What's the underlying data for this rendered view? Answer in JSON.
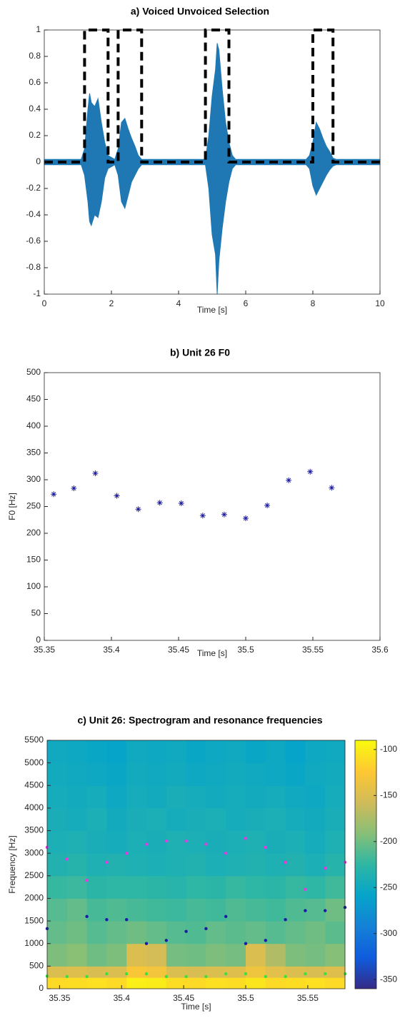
{
  "chart_data": [
    {
      "type": "line",
      "title": "a) Voiced Unvoiced Selection",
      "xlabel": "Time [s]",
      "xlim": [
        0,
        10
      ],
      "xticks": [
        0,
        2,
        4,
        6,
        8,
        10
      ],
      "ylim": [
        -1,
        1
      ],
      "yticks": [
        -1,
        -0.8,
        -0.6,
        -0.4,
        -0.2,
        0,
        0.2,
        0.4,
        0.6,
        0.8,
        1
      ],
      "series": [
        {
          "color": "#1f78b4",
          "fill": true,
          "x": [
            0,
            1.1,
            1.2,
            1.3,
            1.35,
            1.4,
            1.5,
            1.6,
            1.7,
            1.8,
            1.9,
            2.1,
            2.2,
            2.3,
            2.4,
            2.5,
            2.6,
            2.7,
            2.8,
            2.9,
            4.8,
            4.9,
            5.0,
            5.1,
            5.15,
            5.2,
            5.3,
            5.4,
            5.5,
            5.6,
            5.7,
            7.8,
            7.9,
            8.0,
            8.1,
            8.2,
            8.3,
            8.4,
            8.5,
            8.6,
            8.7,
            10
          ],
          "values": [
            0.02,
            0.02,
            0.1,
            0.4,
            0.52,
            0.45,
            0.42,
            0.48,
            0.3,
            0.15,
            0.05,
            0.02,
            0.1,
            0.3,
            0.33,
            0.25,
            0.18,
            0.12,
            0.05,
            0.02,
            0.02,
            0.2,
            0.5,
            0.7,
            0.9,
            0.85,
            0.55,
            0.3,
            0.15,
            0.05,
            0.02,
            0.02,
            0.05,
            0.15,
            0.3,
            0.25,
            0.18,
            0.12,
            0.08,
            0.03,
            0.02,
            0.02
          ]
        },
        {
          "color": "#1f78b4",
          "fill": true,
          "x": [
            0,
            1.1,
            1.2,
            1.3,
            1.35,
            1.4,
            1.5,
            1.6,
            1.7,
            1.8,
            1.9,
            2.1,
            2.2,
            2.3,
            2.4,
            2.5,
            2.6,
            2.7,
            2.8,
            2.9,
            4.8,
            4.9,
            5.0,
            5.1,
            5.15,
            5.2,
            5.3,
            5.4,
            5.5,
            5.6,
            5.7,
            7.8,
            7.9,
            8.0,
            8.1,
            8.2,
            8.3,
            8.4,
            8.5,
            8.6,
            8.7,
            10
          ],
          "values": [
            -0.02,
            -0.02,
            -0.1,
            -0.3,
            -0.45,
            -0.48,
            -0.4,
            -0.42,
            -0.3,
            -0.12,
            -0.05,
            -0.02,
            -0.1,
            -0.3,
            -0.35,
            -0.25,
            -0.15,
            -0.1,
            -0.05,
            -0.02,
            -0.02,
            -0.2,
            -0.55,
            -0.7,
            -1.0,
            -0.75,
            -0.5,
            -0.3,
            -0.15,
            -0.05,
            -0.02,
            -0.02,
            -0.05,
            -0.18,
            -0.25,
            -0.2,
            -0.15,
            -0.1,
            -0.06,
            -0.03,
            -0.02,
            -0.02
          ]
        },
        {
          "color": "#000000",
          "line_style": "dashed",
          "x": [
            0,
            1.2,
            1.2,
            1.9,
            1.9,
            2.2,
            2.2,
            2.9,
            2.9,
            4.8,
            4.8,
            5.5,
            5.5,
            8.0,
            8.0,
            8.6,
            8.6,
            10
          ],
          "values": [
            0,
            0,
            1,
            1,
            0,
            0,
            1,
            1,
            0,
            0,
            1,
            1,
            0,
            0,
            1,
            1,
            0,
            0
          ]
        }
      ]
    },
    {
      "type": "scatter",
      "title": "b) Unit 26 F0",
      "xlabel": "Time [s]",
      "ylabel": "F0 [Hz]",
      "xlim": [
        35.35,
        35.6
      ],
      "xticks": [
        35.35,
        35.4,
        35.45,
        35.5,
        35.55,
        35.6
      ],
      "ylim": [
        0,
        500
      ],
      "yticks": [
        0,
        50,
        100,
        150,
        200,
        250,
        300,
        350,
        400,
        450,
        500
      ],
      "series": [
        {
          "color": "#1a1a9c",
          "marker": "asterisk",
          "x": [
            35.357,
            35.372,
            35.388,
            35.404,
            35.42,
            35.436,
            35.452,
            35.468,
            35.484,
            35.5,
            35.516,
            35.532,
            35.548,
            35.564
          ],
          "values": [
            273,
            284,
            312,
            270,
            245,
            257,
            256,
            233,
            235,
            228,
            252,
            299,
            315,
            285
          ]
        }
      ]
    },
    {
      "type": "heatmap",
      "title": "c) Unit 26: Spectrogram and resonance frequencies",
      "xlabel": "Time [s]",
      "ylabel": "Frequency [Hz]",
      "xlim": [
        35.34,
        35.58
      ],
      "xticks": [
        35.35,
        35.4,
        35.45,
        35.5,
        35.55
      ],
      "ylim": [
        0,
        5500
      ],
      "yticks": [
        0,
        500,
        1000,
        1500,
        2000,
        2500,
        3000,
        3500,
        4000,
        4500,
        5000,
        5500
      ],
      "x_edges": [
        35.34,
        35.356,
        35.372,
        35.388,
        35.404,
        35.42,
        35.436,
        35.452,
        35.468,
        35.484,
        35.5,
        35.516,
        35.532,
        35.548,
        35.564,
        35.58
      ],
      "y_edges": [
        0,
        250,
        500,
        1000,
        1500,
        2000,
        2500,
        3000,
        3500,
        4000,
        4500,
        5000,
        5500
      ],
      "z": [
        [
          -112,
          -110,
          -108,
          -112,
          -98,
          -100,
          -110,
          -112,
          -108,
          -110,
          -104,
          -112,
          -110,
          -108,
          -112
        ],
        [
          -150,
          -148,
          -152,
          -150,
          -128,
          -132,
          -150,
          -152,
          -150,
          -148,
          -135,
          -145,
          -150,
          -152,
          -148
        ],
        [
          -195,
          -190,
          -200,
          -195,
          -150,
          -155,
          -198,
          -200,
          -195,
          -198,
          -150,
          -172,
          -195,
          -198,
          -192
        ],
        [
          -205,
          -200,
          -210,
          -205,
          -200,
          -205,
          -210,
          -212,
          -205,
          -208,
          -205,
          -210,
          -205,
          -200,
          -208
        ],
        [
          -210,
          -205,
          -215,
          -212,
          -215,
          -218,
          -220,
          -215,
          -218,
          -212,
          -215,
          -218,
          -212,
          -210,
          -200
        ],
        [
          -222,
          -220,
          -228,
          -225,
          -225,
          -228,
          -230,
          -225,
          -228,
          -222,
          -225,
          -228,
          -222,
          -225,
          -218
        ],
        [
          -235,
          -232,
          -238,
          -235,
          -238,
          -240,
          -238,
          -235,
          -240,
          -238,
          -235,
          -238,
          -235,
          -240,
          -232
        ],
        [
          -240,
          -238,
          -242,
          -245,
          -240,
          -242,
          -238,
          -240,
          -242,
          -240,
          -238,
          -242,
          -240,
          -245,
          -238
        ],
        [
          -242,
          -245,
          -240,
          -248,
          -242,
          -240,
          -245,
          -242,
          -240,
          -245,
          -242,
          -240,
          -245,
          -248,
          -242
        ],
        [
          -245,
          -248,
          -245,
          -252,
          -245,
          -248,
          -242,
          -245,
          -248,
          -245,
          -248,
          -245,
          -250,
          -252,
          -245
        ],
        [
          -248,
          -250,
          -252,
          -255,
          -248,
          -250,
          -248,
          -252,
          -250,
          -248,
          -250,
          -252,
          -255,
          -250,
          -248
        ],
        [
          -250,
          -252,
          -255,
          -258,
          -250,
          -252,
          -250,
          -255,
          -252,
          -250,
          -255,
          -252,
          -258,
          -252,
          -250
        ]
      ],
      "clim": [
        -360,
        -90
      ],
      "colorbar_ticks": [
        -350,
        -300,
        -250,
        -200,
        -150,
        -100
      ],
      "colormap": [
        "#352a87",
        "#0f5cdd",
        "#1481d6",
        "#06a4ca",
        "#2eb7a4",
        "#87bf77",
        "#d1bb59",
        "#fec832",
        "#f9fb0e"
      ],
      "series": [
        {
          "color": "#e03ce0",
          "x": [
            35.34,
            35.356,
            35.372,
            35.388,
            35.404,
            35.42,
            35.436,
            35.452,
            35.468,
            35.484,
            35.5,
            35.516,
            35.532,
            35.548,
            35.564,
            35.58
          ],
          "values": [
            3130,
            2870,
            2400,
            2800,
            3000,
            3200,
            3270,
            3270,
            3200,
            3000,
            3330,
            3130,
            2800,
            2200,
            2670,
            2800
          ]
        },
        {
          "color": "#1a1aa6",
          "x": [
            35.34,
            35.356,
            35.372,
            35.388,
            35.404,
            35.42,
            35.436,
            35.452,
            35.468,
            35.484,
            35.5,
            35.516,
            35.532,
            35.548,
            35.564,
            35.58
          ],
          "values": [
            1330,
            null,
            1600,
            1530,
            1530,
            1000,
            1070,
            1270,
            1330,
            1600,
            1000,
            1070,
            1530,
            1730,
            1730,
            1800
          ]
        },
        {
          "color": "#3ce040",
          "x": [
            35.34,
            35.356,
            35.372,
            35.388,
            35.404,
            35.42,
            35.436,
            35.452,
            35.468,
            35.484,
            35.5,
            35.516,
            35.532,
            35.548,
            35.564,
            35.58
          ],
          "values": [
            280,
            270,
            270,
            330,
            330,
            330,
            270,
            270,
            270,
            330,
            330,
            270,
            270,
            330,
            330,
            330
          ]
        }
      ]
    }
  ]
}
